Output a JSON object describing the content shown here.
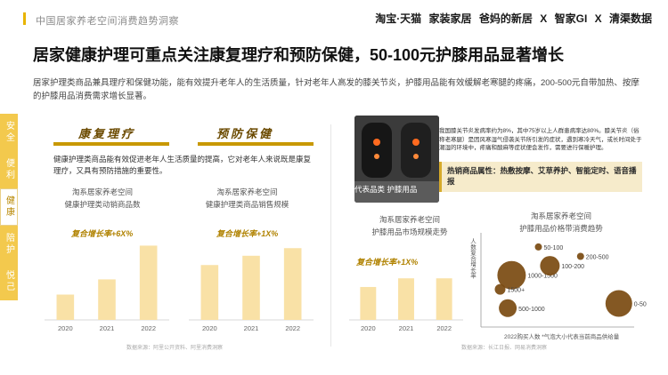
{
  "header": {
    "title": "中国居家养老空间消费趋势洞察",
    "brands": [
      "淘宝·天猫",
      "家装家居",
      "爸妈的新居",
      "X",
      "智家GI",
      "X",
      "清渠数据"
    ]
  },
  "main_title": "居家健康护理可重点关注康复理疗和预防保健，50-100元护膝用品显著增长",
  "description": "居家护理类商品兼具理疗和保健功能，能有效提升老年人的生活质量，针对老年人高发的膝关节炎，护膝用品能有效缓解老寒腿的疼痛，200-500元自带加热、按摩的护膝用品消费需求增长显著。",
  "nav": [
    "安全",
    "便利",
    "健康",
    "陪护",
    "悦己"
  ],
  "nav_active": 2,
  "sections": {
    "rehab_label": "康复理疗",
    "prevent_label": "预防保健",
    "note": "健康护理类商品能有效促进老年人生活质量的提高，它对老年人来说既是康复理疗，又具有预防措施的重要性。"
  },
  "source_left": "数据来源：阿里公开资料、阿里消费洞察",
  "source_right": "数据来源：长江日报、网易消费洞察",
  "info": {
    "photo_tag": "代表品类 护膝用品",
    "text": "我国膝关节炎发病率约为8%，其中75岁以上人群患病率达80%。膝关节炎（俗称老寒腿）是因风寒湿气侵袭关节所引发的症状，遇到寒冷天气，或长时间处于潮湿的环境中，疼痛和酸麻等症状便会发作，需要进行保暖护理。",
    "hot": "热销商品属性：热敷按摩、艾草养护、智能定时、语音播报"
  },
  "chart_data": [
    {
      "type": "bar",
      "title": "淘系居家养老空间\n健康护理类动销商品数",
      "growth": "复合增长率+6X%",
      "categories": [
        "2020",
        "2021",
        "2022"
      ],
      "values": [
        30,
        48,
        88
      ],
      "ylim": [
        0,
        100
      ]
    },
    {
      "type": "bar",
      "title": "淘系居家养老空间\n健康护理类商品销售规模",
      "growth": "复合增长率+1X%",
      "categories": [
        "2020",
        "2021",
        "2022"
      ],
      "values": [
        65,
        76,
        85
      ],
      "ylim": [
        0,
        100
      ]
    },
    {
      "type": "bar",
      "title": "淘系居家养老空间\n护膝用品市场规模走势",
      "growth": "复合增长率+1X%",
      "categories": [
        "2020",
        "2021",
        "2022"
      ],
      "values": [
        57,
        72,
        72
      ],
      "ylim": [
        0,
        100
      ]
    },
    {
      "type": "scatter",
      "title": "淘系居家养老空间\n护膝用品价格带消费趋势",
      "ylabel": "人数复合增长率",
      "xlabel": "2022购买人数 *气泡大小代表当前商品供给量",
      "series": [
        {
          "label": "1000-1500",
          "x": 0.8,
          "y": 2.2,
          "size": 16
        },
        {
          "label": "1500+",
          "x": 0.5,
          "y": 1.6,
          "size": 6
        },
        {
          "label": "100-200",
          "x": 1.8,
          "y": 2.6,
          "size": 11
        },
        {
          "label": "500-1000",
          "x": 0.7,
          "y": 0.8,
          "size": 10
        },
        {
          "label": "0-50",
          "x": 3.6,
          "y": 1.0,
          "size": 15
        },
        {
          "label": "50-100",
          "x": 1.5,
          "y": 3.4,
          "size": 4
        },
        {
          "label": "200-500",
          "x": 2.6,
          "y": 3.0,
          "size": 4
        }
      ]
    }
  ]
}
